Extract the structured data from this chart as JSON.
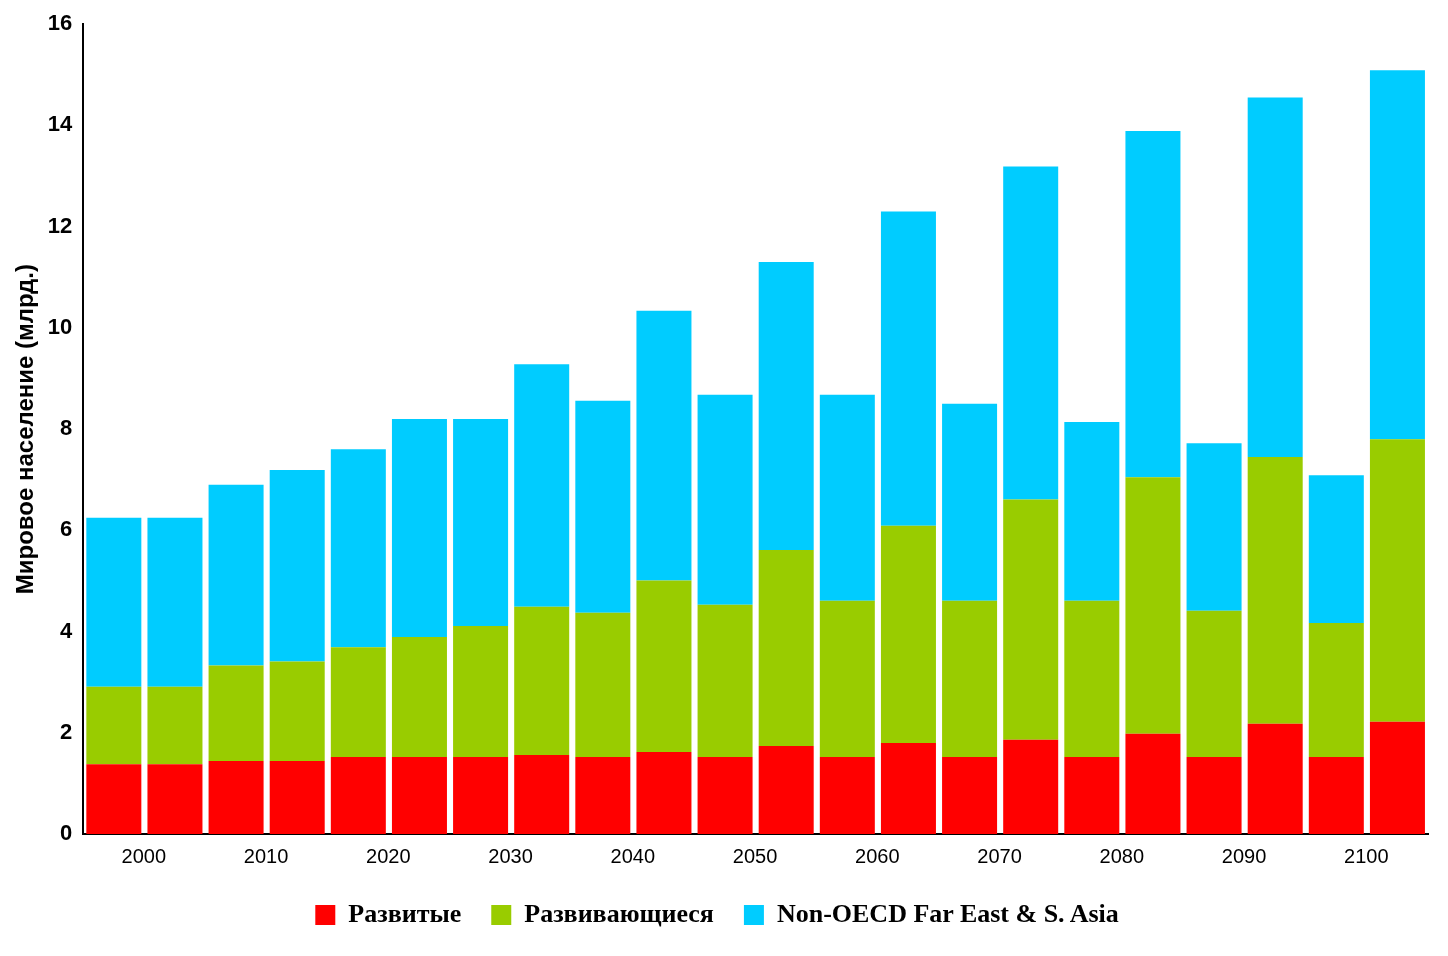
{
  "chart_data": {
    "type": "bar",
    "stacked": true,
    "ylabel": "Мировое население (млрд.)",
    "categories": [
      "2000",
      null,
      "2010",
      null,
      "2020",
      null,
      "2030",
      null,
      "2040",
      null,
      "2050",
      null,
      "2060",
      null,
      "2070",
      null,
      "2080",
      null,
      "2090",
      null,
      "2100",
      null
    ],
    "series": [
      {
        "name": "Развитые",
        "color": "#ff0000",
        "values": [
          1.38,
          1.38,
          1.44,
          1.44,
          1.52,
          1.52,
          1.52,
          1.56,
          1.52,
          1.62,
          1.52,
          1.74,
          1.52,
          1.8,
          1.52,
          1.86,
          1.52,
          1.98,
          1.52,
          2.18,
          1.52,
          2.22
        ]
      },
      {
        "name": "Развивающиеся",
        "color": "#99cc00",
        "values": [
          1.53,
          1.53,
          1.89,
          1.97,
          2.17,
          2.37,
          2.59,
          2.93,
          2.85,
          3.39,
          3.01,
          3.87,
          3.09,
          4.29,
          3.09,
          4.75,
          3.09,
          5.07,
          2.89,
          5.27,
          2.65,
          5.58
        ]
      },
      {
        "name": "Non-OECD Far East & S. Asia",
        "color": "#00ccff",
        "values": [
          3.34,
          3.34,
          3.57,
          3.78,
          3.91,
          4.31,
          4.09,
          4.79,
          4.19,
          5.33,
          4.15,
          5.69,
          4.07,
          6.21,
          3.89,
          6.58,
          3.53,
          6.84,
          3.31,
          7.1,
          2.92,
          7.29
        ]
      }
    ],
    "ylim": [
      0,
      16
    ],
    "yticks": [
      0,
      2,
      4,
      6,
      8,
      10,
      12,
      14,
      16
    ],
    "grid": false,
    "legend": "bottom"
  }
}
